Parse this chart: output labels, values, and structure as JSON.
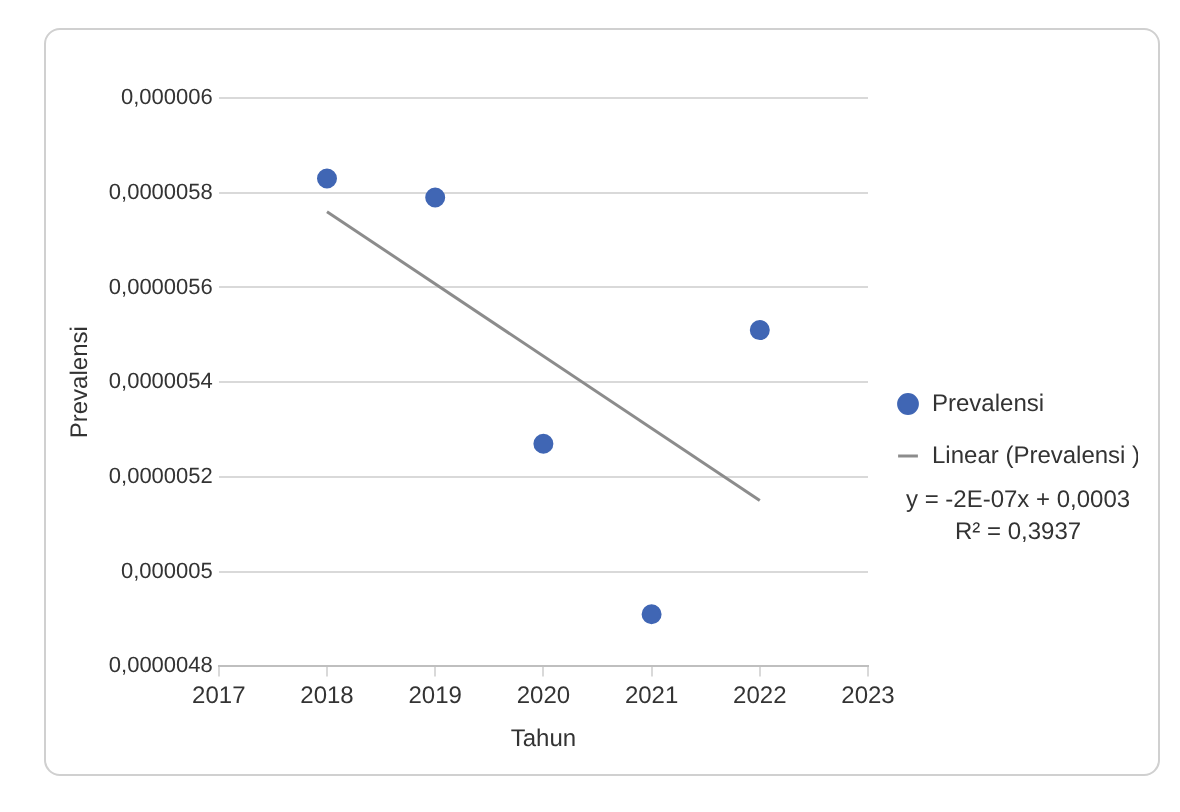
{
  "chart_data": {
    "type": "scatter",
    "xlabel": "Tahun",
    "ylabel": "Prevalensi",
    "x": [
      2018,
      2019,
      2020,
      2021,
      2022
    ],
    "series": [
      {
        "name": "Prevalensi",
        "color": "#4066b4",
        "marker": "circle",
        "values": [
          5.83e-06,
          5.79e-06,
          5.27e-06,
          4.91e-06,
          5.51e-06
        ]
      },
      {
        "name": "Linear (Prevalensi )",
        "type": "line",
        "marker": "none",
        "color": "#8c8c8c",
        "x": [
          2018,
          2022
        ],
        "values": [
          5.76e-06,
          5.15e-06
        ]
      }
    ],
    "xlim": [
      2017,
      2023
    ],
    "xticks": [
      2017,
      2018,
      2019,
      2020,
      2021,
      2022,
      2023
    ],
    "ylim": [
      4.8e-06,
      6e-06
    ],
    "yticks": [
      {
        "value": 4.8e-06,
        "label": "0,0000048"
      },
      {
        "value": 5e-06,
        "label": "0,000005"
      },
      {
        "value": 5.2e-06,
        "label": "0,0000052"
      },
      {
        "value": 5.4e-06,
        "label": "0,0000054"
      },
      {
        "value": 5.6e-06,
        "label": "0,0000056"
      },
      {
        "value": 5.8e-06,
        "label": "0,0000058"
      },
      {
        "value": 6e-06,
        "label": "0,000006"
      }
    ],
    "annotations": [
      "y = -2E-07x + 0,0003",
      "R² = 0,3937"
    ],
    "grid": "y",
    "legend": "right"
  }
}
